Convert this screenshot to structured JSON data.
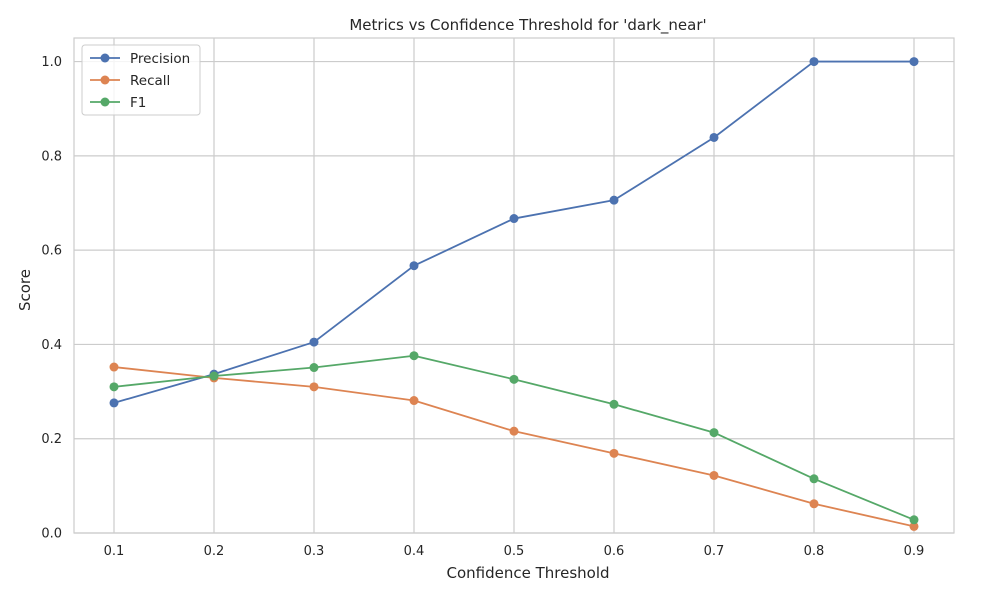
{
  "chart_data": {
    "type": "line",
    "title": "Metrics vs Confidence Threshold for 'dark_near'",
    "xlabel": "Confidence Threshold",
    "ylabel": "Score",
    "x": [
      0.1,
      0.2,
      0.3,
      0.4,
      0.5,
      0.6,
      0.7,
      0.8,
      0.9
    ],
    "xticks": [
      "0.1",
      "0.2",
      "0.3",
      "0.4",
      "0.5",
      "0.6",
      "0.7",
      "0.8",
      "0.9"
    ],
    "yticks": [
      "0.0",
      "0.2",
      "0.4",
      "0.6",
      "0.8",
      "1.0"
    ],
    "ytick_values": [
      0.0,
      0.2,
      0.4,
      0.6,
      0.8,
      1.0
    ],
    "xlim": [
      0.06,
      0.94
    ],
    "ylim": [
      0.0,
      1.05
    ],
    "grid": true,
    "legend_position": "top-left",
    "series": [
      {
        "name": "Precision",
        "color": "#4c72b0",
        "values": [
          0.276,
          0.337,
          0.405,
          0.567,
          0.667,
          0.706,
          0.839,
          1.0,
          1.0
        ]
      },
      {
        "name": "Recall",
        "color": "#dd8452",
        "values": [
          0.352,
          0.329,
          0.31,
          0.281,
          0.216,
          0.169,
          0.122,
          0.062,
          0.014
        ]
      },
      {
        "name": "F1",
        "color": "#55a868",
        "values": [
          0.31,
          0.333,
          0.351,
          0.376,
          0.326,
          0.273,
          0.213,
          0.115,
          0.028
        ]
      }
    ]
  }
}
